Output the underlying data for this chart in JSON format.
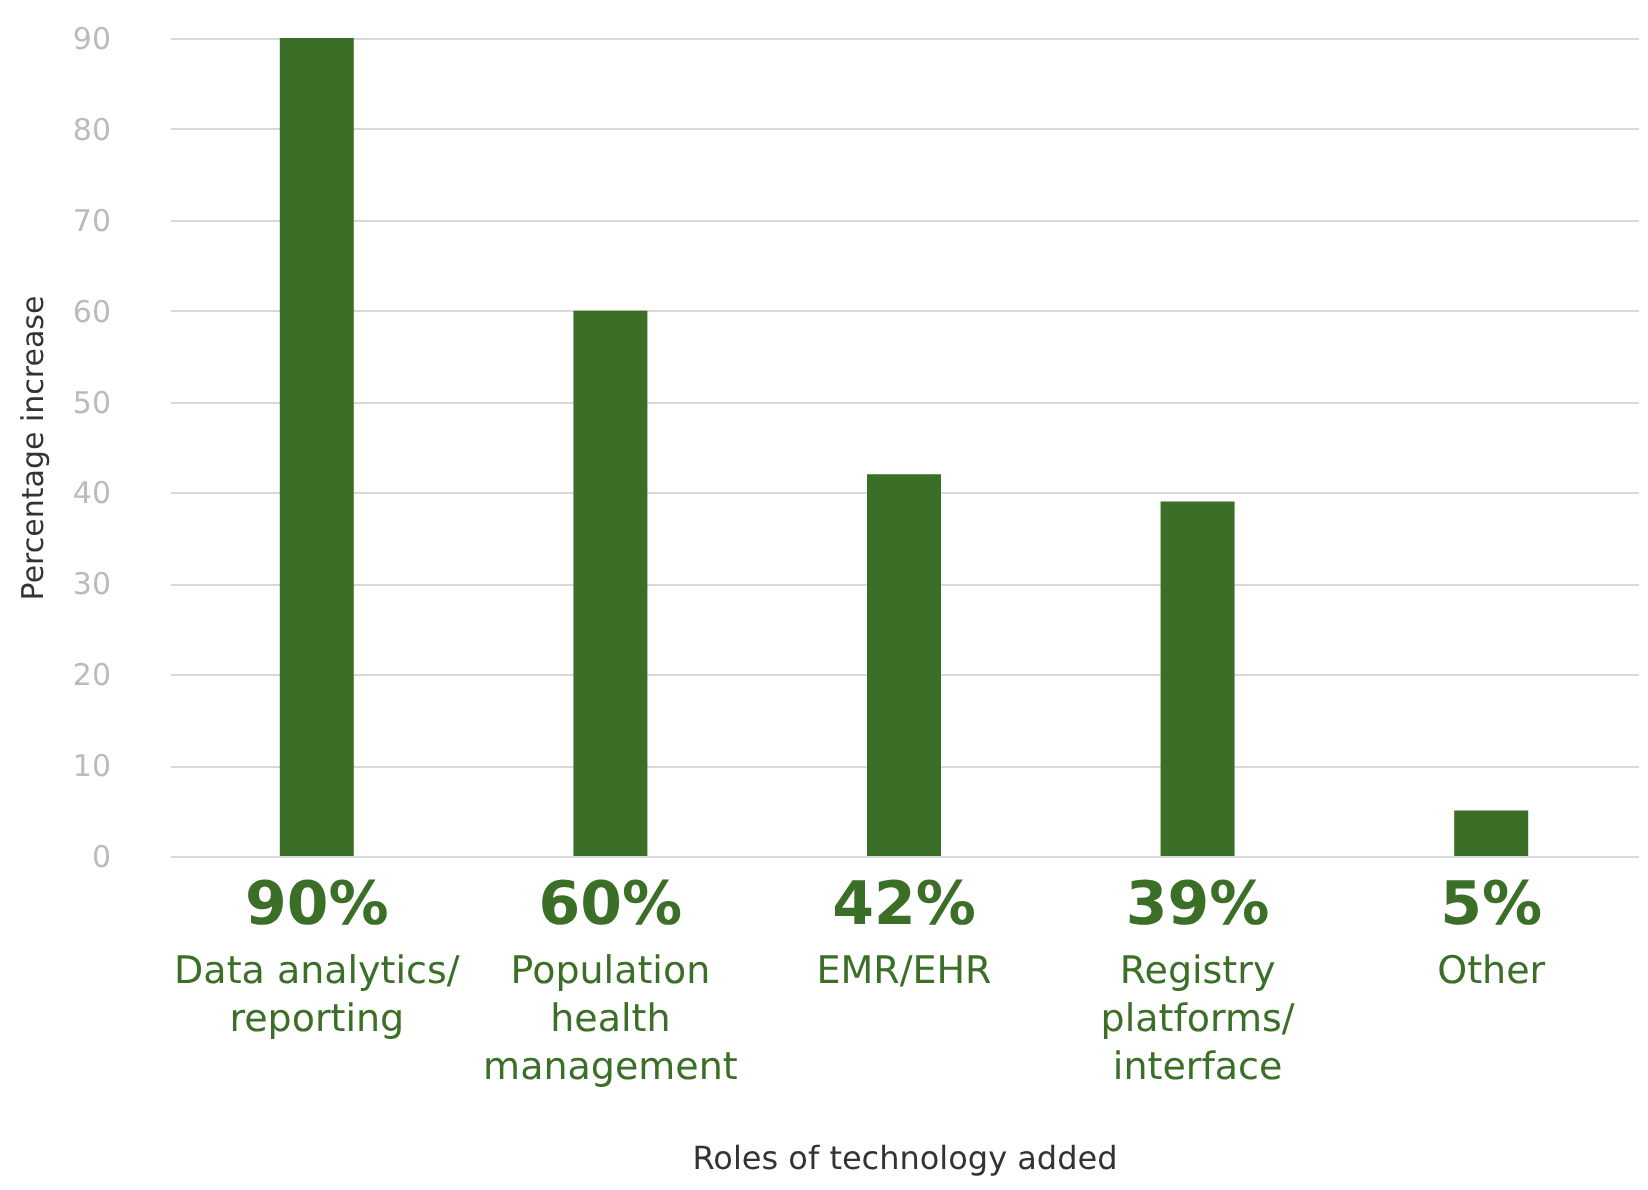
{
  "chart_data": {
    "type": "bar",
    "xlabel": "Roles of technology added",
    "ylabel": "Percentage increase",
    "categories": [
      "Data analytics/\nreporting",
      "Population\nhealth\nmanagement",
      "EMR/EHR",
      "Registry\nplatforms/\ninterface",
      "Other"
    ],
    "values": [
      90,
      60,
      42,
      39,
      5
    ],
    "color": "#3b6e27",
    "value_labels": [
      "90%",
      "60%",
      "42%",
      "39%",
      "5%"
    ],
    "ylim": [
      0,
      90
    ],
    "yticks": [
      0,
      10,
      20,
      30,
      40,
      50,
      60,
      70,
      80,
      90
    ],
    "grid": "y"
  }
}
